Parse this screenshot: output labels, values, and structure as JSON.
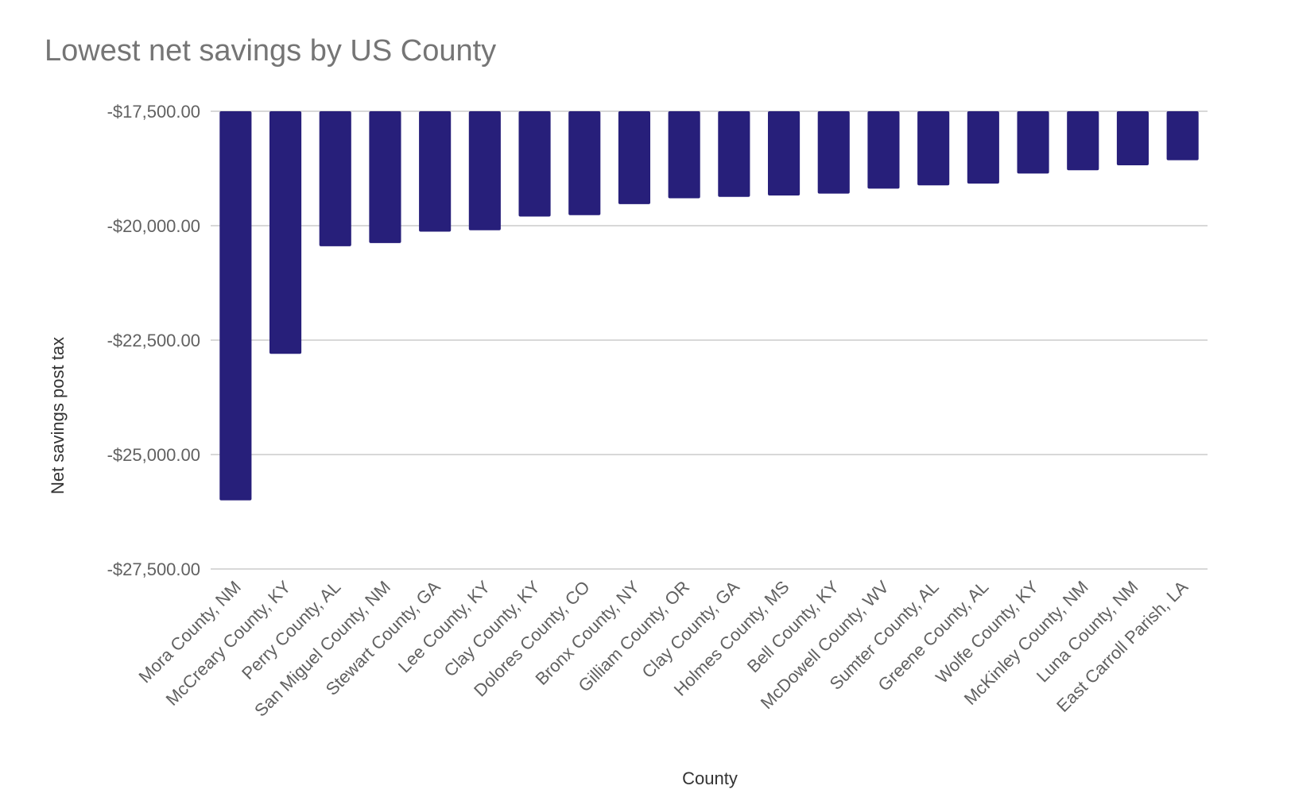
{
  "chart_data": {
    "type": "bar",
    "title": "Lowest net savings by US County",
    "xlabel": "County",
    "ylabel": "Net savings post tax",
    "ylim": [
      -27500,
      -17500
    ],
    "yticks": [
      -17500,
      -20000,
      -22500,
      -25000,
      -27500
    ],
    "ytick_labels": [
      "-$17,500.00",
      "-$20,000.00",
      "-$22,500.00",
      "-$25,000.00",
      "-$27,500.00"
    ],
    "grid": true,
    "legend": "none",
    "bar_color": "#271f7a",
    "categories": [
      "Mora County, NM",
      "McCreary County, KY",
      "Perry County, AL",
      "San Miguel County, NM",
      "Stewart County, GA",
      "Lee County, KY",
      "Clay County, KY",
      "Dolores County, CO",
      "Bronx County, NY",
      "Gilliam County, OR",
      "Clay County, GA",
      "Holmes County, MS",
      "Bell County, KY",
      "McDowell County, WV",
      "Sumter County, AL",
      "Greene County, AL",
      "Wolfe County, KY",
      "McKinley County, NM",
      "Luna County, NM",
      "East Carroll Parish, LA"
    ],
    "values": [
      -26000,
      -22800,
      -20450,
      -20380,
      -20130,
      -20100,
      -19800,
      -19770,
      -19530,
      -19400,
      -19370,
      -19340,
      -19300,
      -19190,
      -19120,
      -19080,
      -18860,
      -18790,
      -18680,
      -18570
    ]
  }
}
